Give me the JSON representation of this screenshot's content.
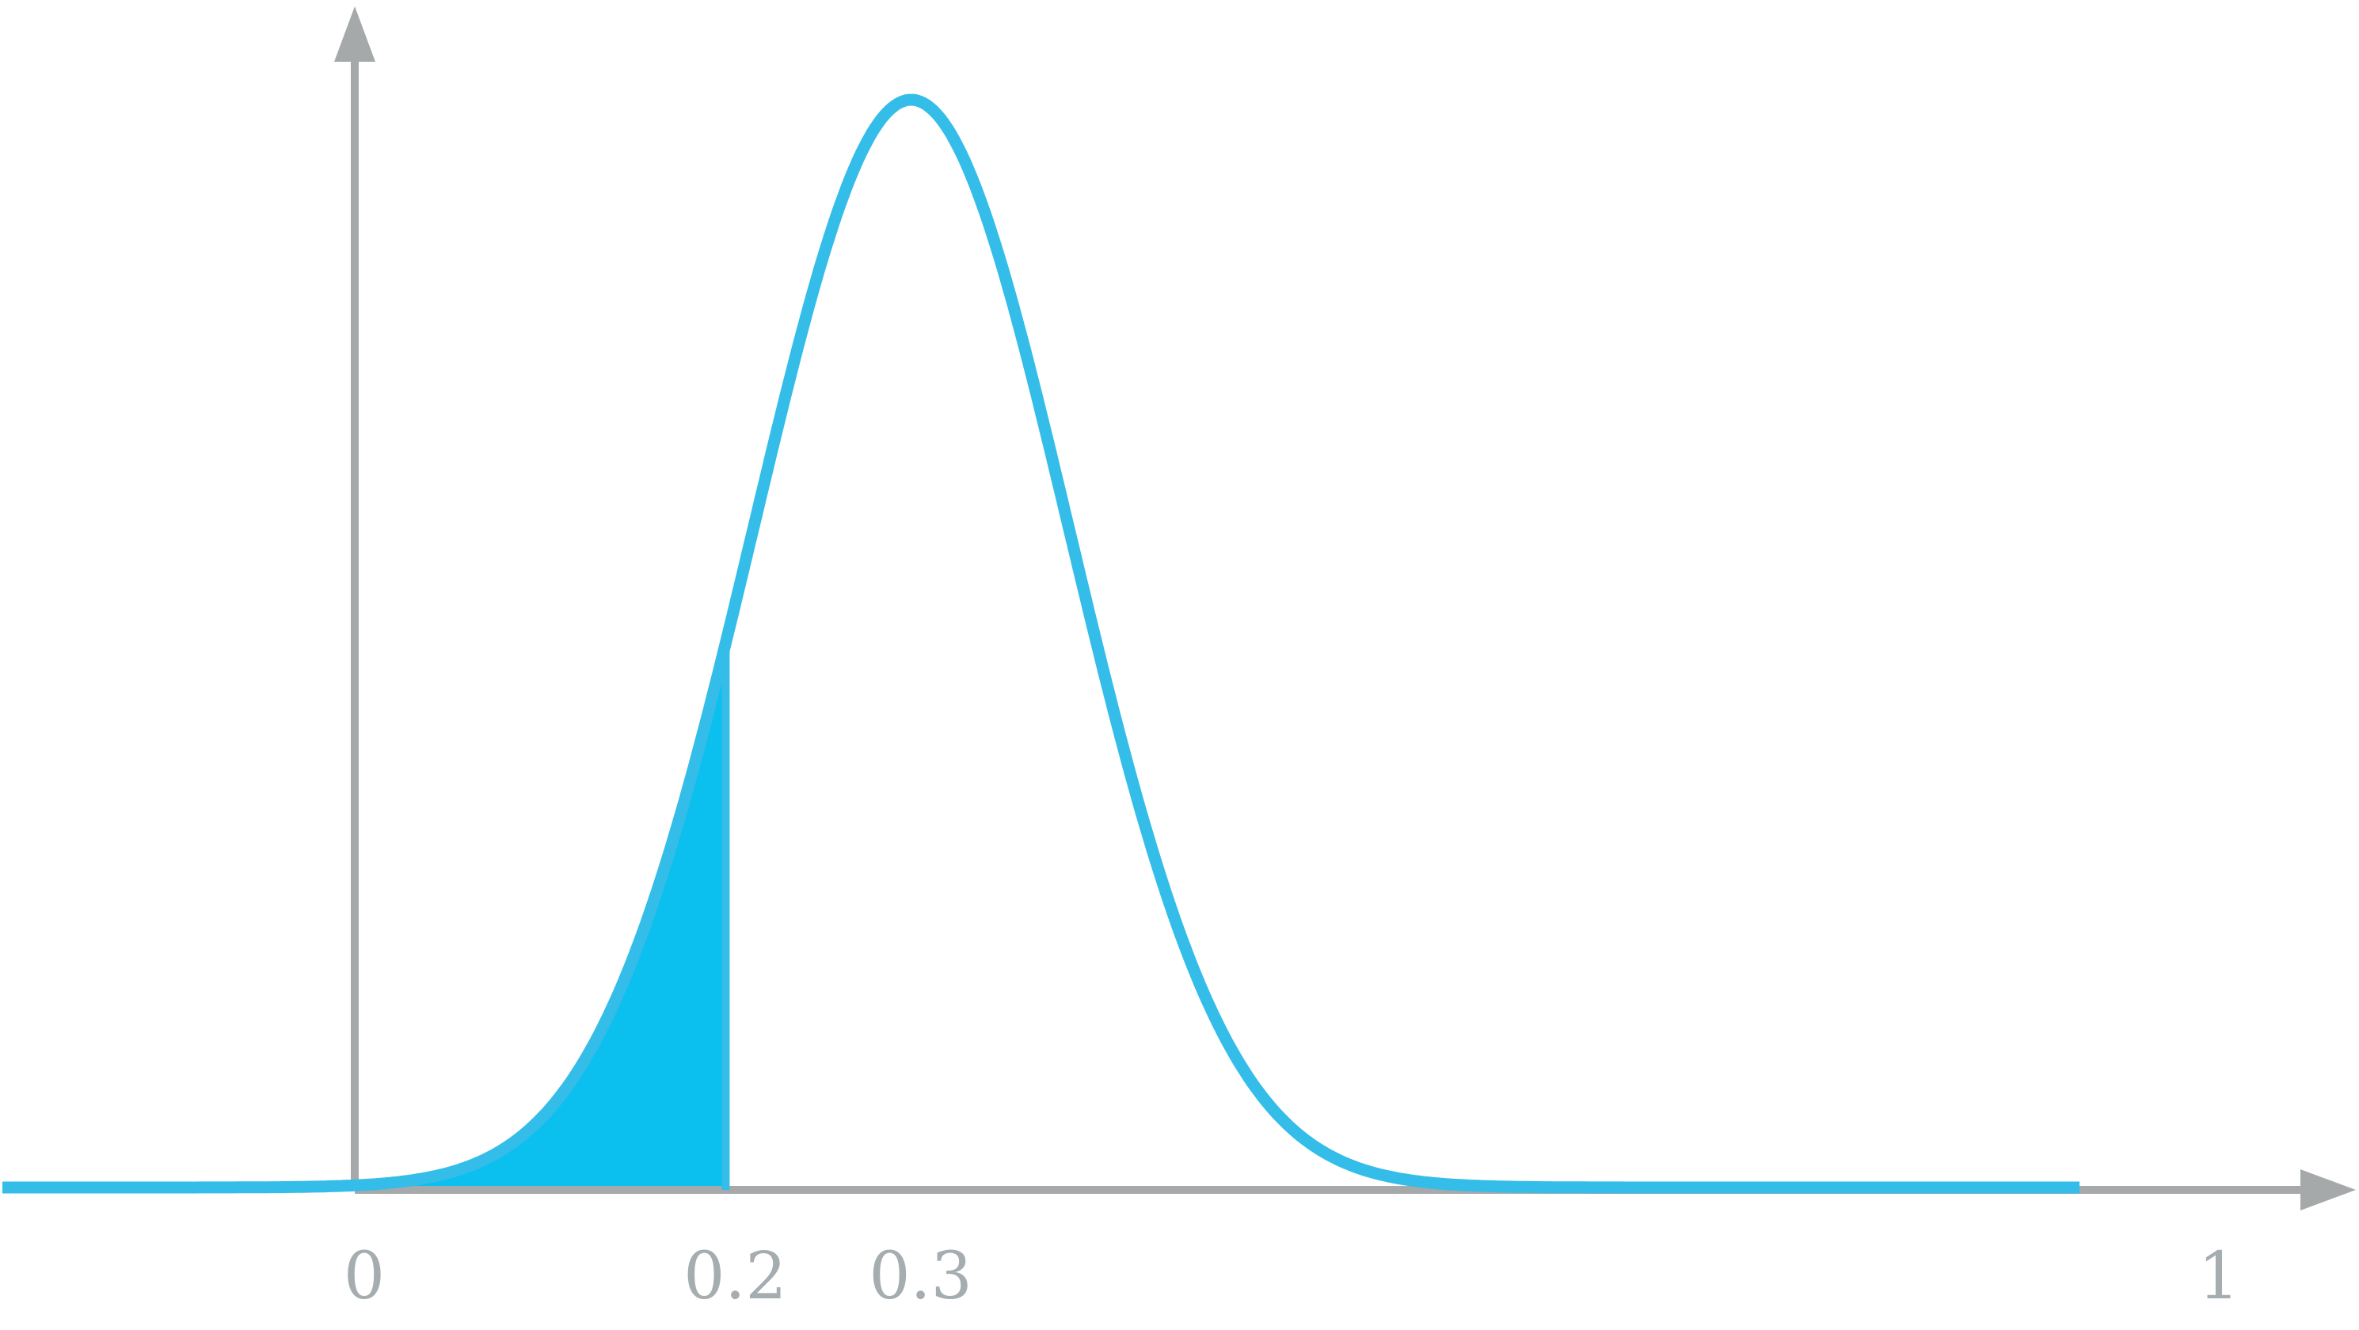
{
  "chart_data": {
    "type": "area",
    "title": "",
    "xlabel": "",
    "ylabel": "",
    "xlim": [
      -0.19,
      1.02
    ],
    "ylim": [
      0,
      1
    ],
    "grid": false,
    "legend": "none",
    "tick_labels": [
      {
        "x": 0,
        "label": "0"
      },
      {
        "x": 0.2,
        "label": "0.2"
      },
      {
        "x": 0.3,
        "label": "0.3"
      },
      {
        "x": 1,
        "label": "1"
      }
    ],
    "curve": {
      "distribution": "normal",
      "mean": 0.3,
      "peak_x": 0.3,
      "sd": 0.085,
      "x_start": -0.19,
      "x_end": 0.93
    },
    "shaded_region": {
      "from": 0,
      "to": 0.2
    },
    "colors": {
      "curve": "#33bde8",
      "fill": "#0bbfee",
      "axes": "#a6a9aa",
      "tick_text": "#a6adb0"
    }
  }
}
